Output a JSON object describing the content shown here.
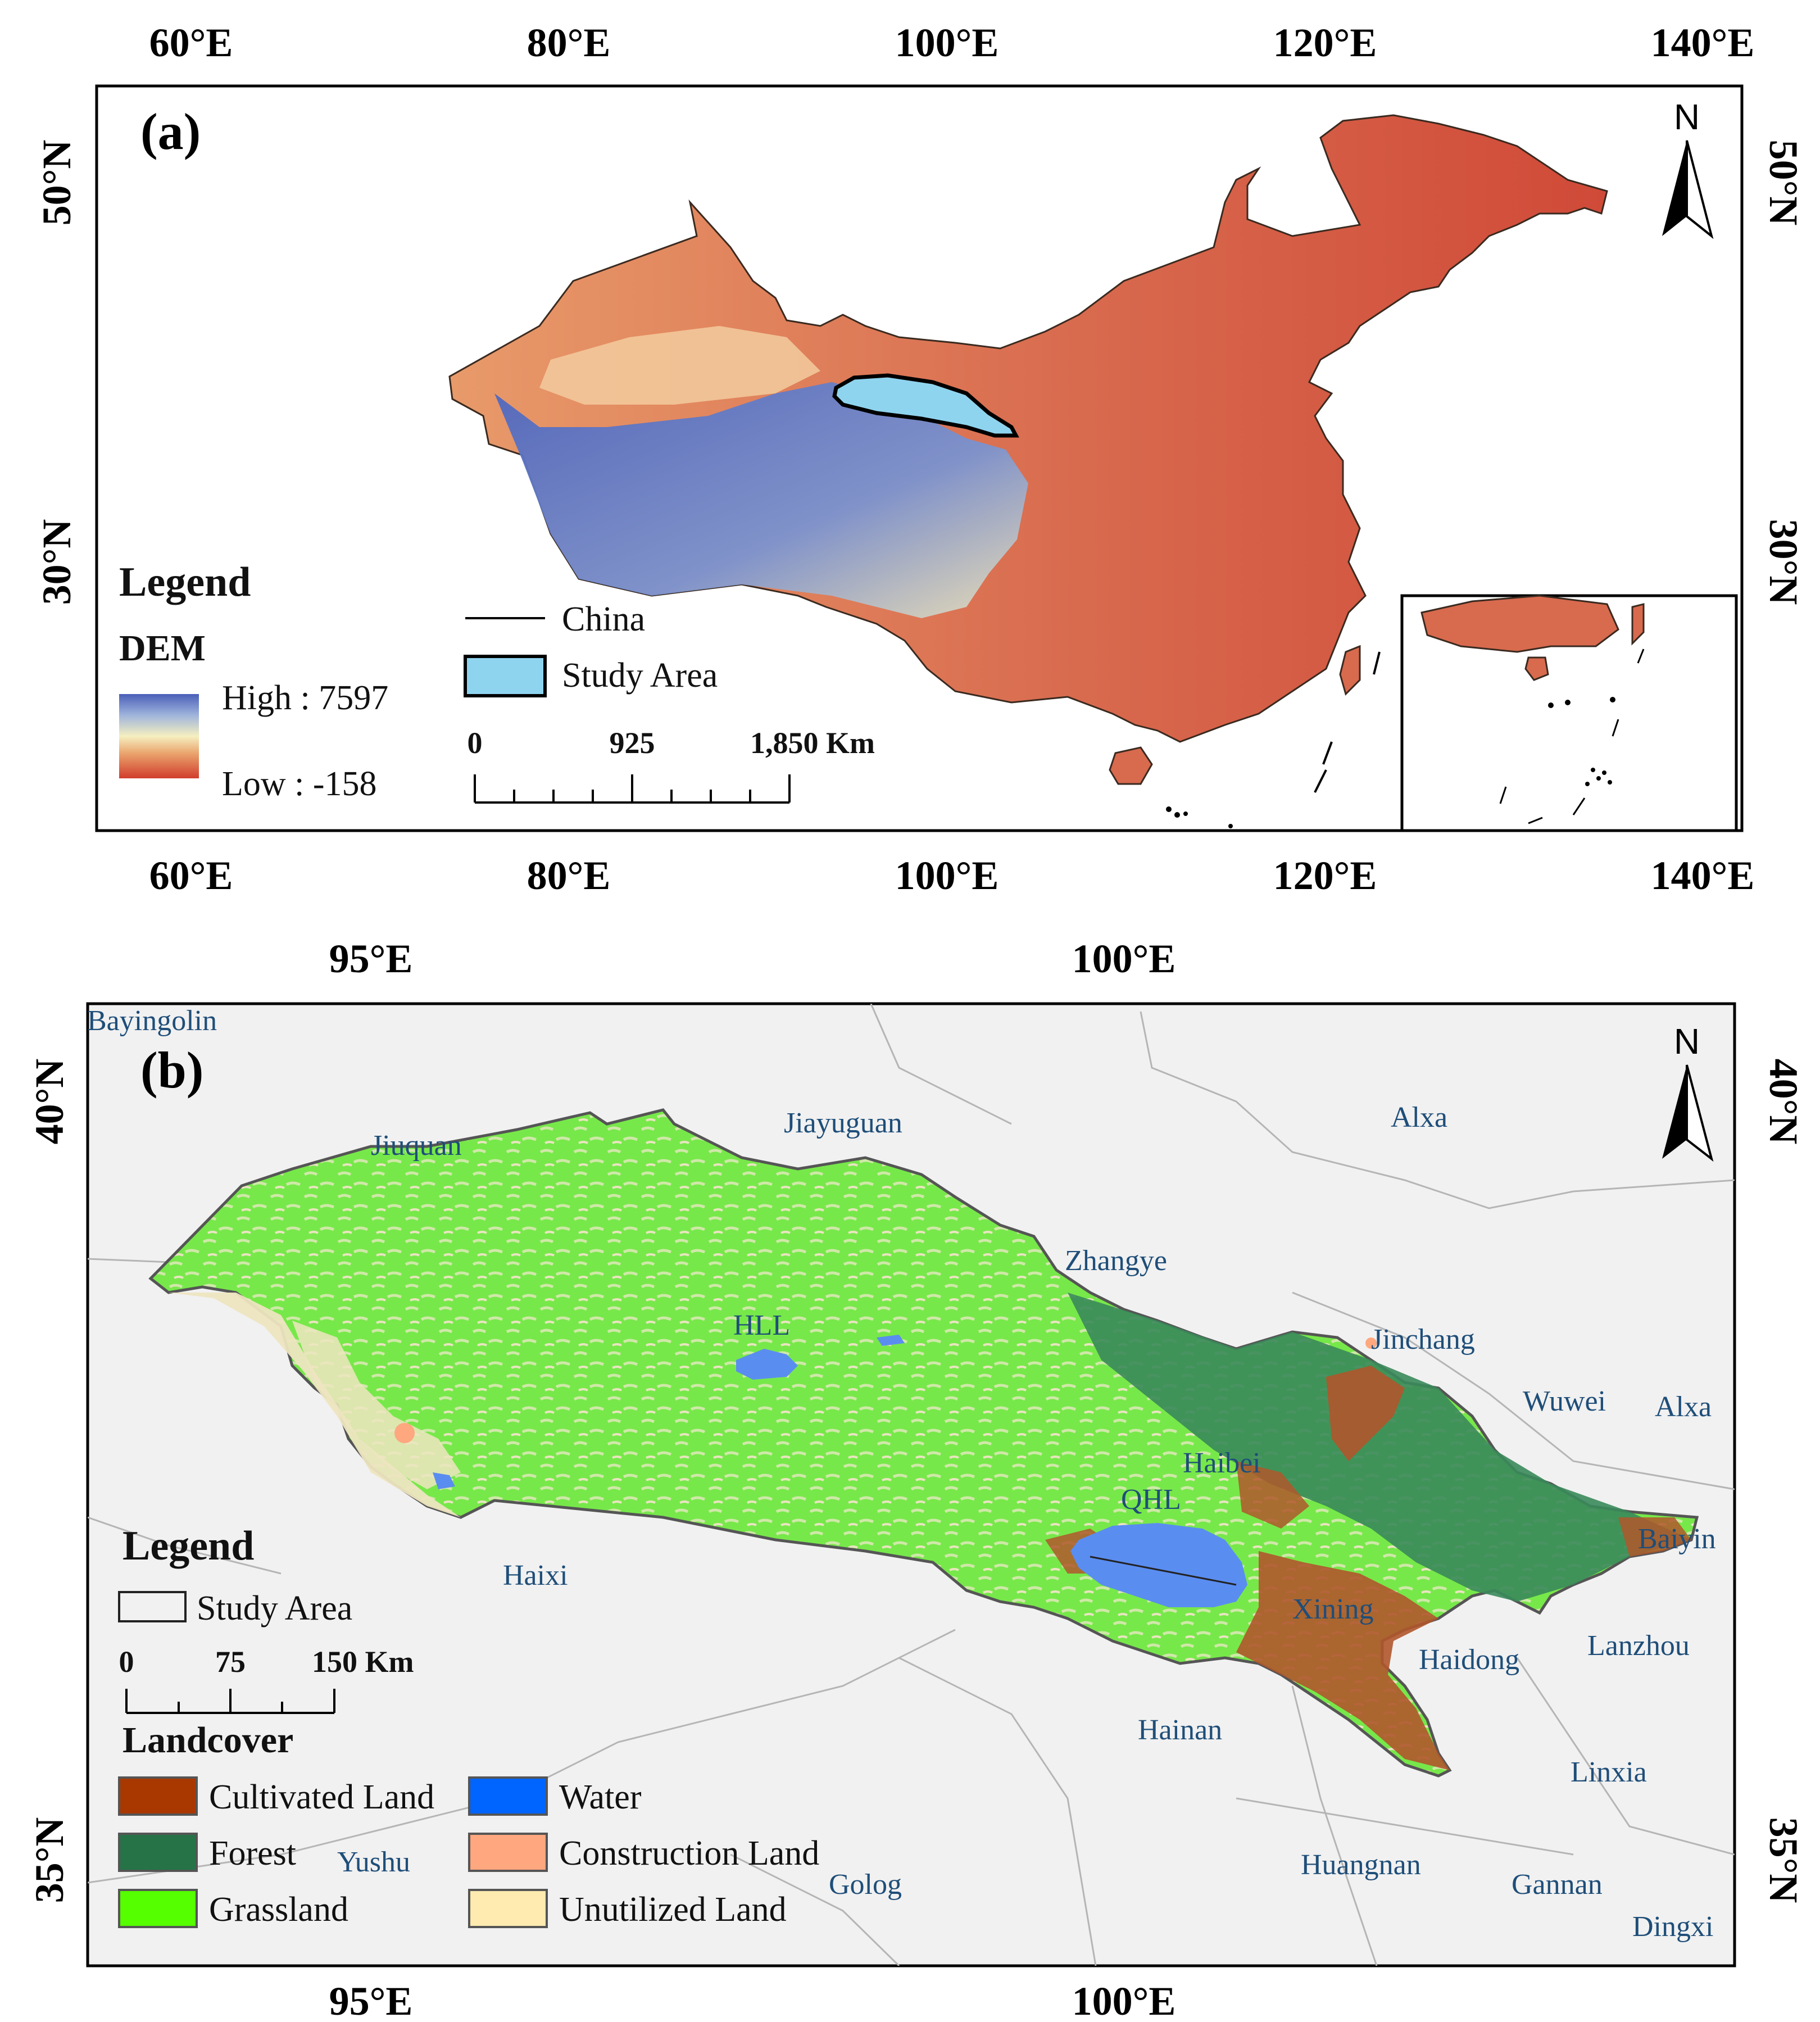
{
  "panel_a": {
    "label": "(a)",
    "lon_ticks_top": [
      "60°E",
      "80°E",
      "100°E",
      "120°E",
      "140°E"
    ],
    "lon_ticks_bottom": [
      "60°E",
      "80°E",
      "100°E",
      "120°E",
      "140°E"
    ],
    "lat_ticks_left": [
      "50°N",
      "30°N"
    ],
    "lat_ticks_right": [
      "50°N",
      "30°N"
    ],
    "north": "N",
    "legend": {
      "title": "Legend",
      "dem_title": "DEM",
      "high": "High : 7597",
      "low": "Low : -158",
      "gradient_colors": [
        "#4a5fb8",
        "#f5efc0",
        "#d13c2c"
      ],
      "china_label": "China",
      "study_area_label": "Study Area",
      "study_area_color": "#8fd4ee"
    },
    "scale": {
      "labels": [
        "0",
        "925",
        "1,850 Km"
      ]
    }
  },
  "panel_b": {
    "label": "(b)",
    "lon_ticks_top": [
      "95°E",
      "100°E"
    ],
    "lon_ticks_bottom": [
      "95°E",
      "100°E"
    ],
    "lat_ticks_left": [
      "40°N",
      "35°N"
    ],
    "lat_ticks_right": [
      "40°N",
      "35°N"
    ],
    "north": "N",
    "places": {
      "bayingolin": "Bayingolin",
      "jiuquan": "Jiuquan",
      "jiayuguan": "Jiayuguan",
      "alxa1": "Alxa",
      "zhangye": "Zhangye",
      "hll": "HLL",
      "jinchang": "Jinchang",
      "wuwei": "Wuwei",
      "alxa2": "Alxa",
      "haibei": "Haibei",
      "qhl": "QHL",
      "baiyin": "Baiyin",
      "haixi": "Haixi",
      "xining": "Xining",
      "lanzhou": "Lanzhou",
      "haidong": "Haidong",
      "hainan": "Hainan",
      "linxia": "Linxia",
      "yushu": "Yushu",
      "golog": "Golog",
      "huangnan": "Huangnan",
      "gannan": "Gannan",
      "dingxi": "Dingxi"
    },
    "legend": {
      "title": "Legend",
      "study_area_label": "Study Area",
      "scale_labels": [
        "0",
        "75",
        "150 Km"
      ],
      "landcover_title": "Landcover",
      "classes": [
        {
          "label": "Cultivated Land",
          "color": "#a83800"
        },
        {
          "label": "Forest",
          "color": "#267348"
        },
        {
          "label": "Grassland",
          "color": "#55ff00"
        },
        {
          "label": "Water",
          "color": "#0064ff"
        },
        {
          "label": "Construction Land",
          "color": "#ffa77f"
        },
        {
          "label": "Unutilized Land",
          "color": "#ffebaf"
        }
      ]
    }
  }
}
